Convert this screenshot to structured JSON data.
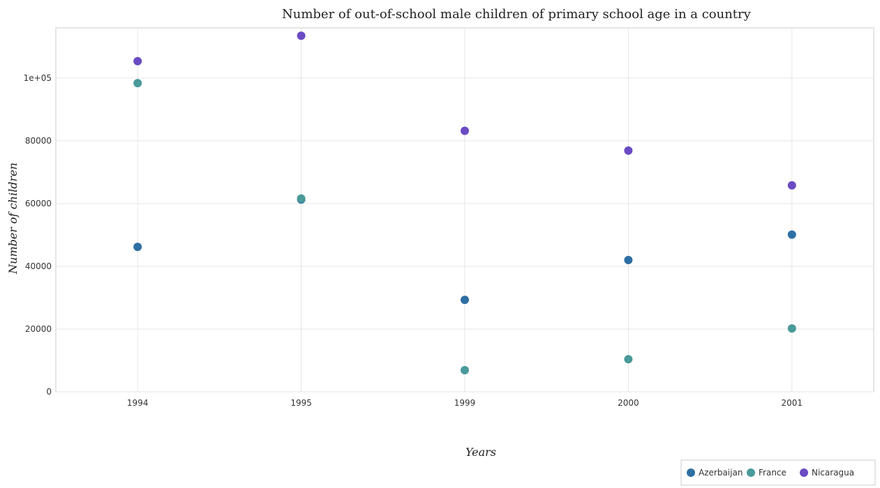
{
  "chart_data": {
    "type": "scatter",
    "title": "Number of out-of-school male children of primary school age in a country",
    "xlabel": "Years",
    "ylabel": "Number of children",
    "categories": [
      "1994",
      "1995",
      "1999",
      "2000",
      "2001"
    ],
    "ylim": [
      0,
      116000
    ],
    "yticks": [
      0,
      20000,
      40000,
      60000,
      80000,
      100000
    ],
    "ytick_labels": [
      "0",
      "20000",
      "40000",
      "60000",
      "80000",
      "1e+05"
    ],
    "grid": true,
    "legend_position": "bottom-right",
    "series": [
      {
        "name": "Azerbaijan",
        "color": "#2e6fa3",
        "values": [
          46200,
          61300,
          29300,
          42000,
          50100
        ]
      },
      {
        "name": "France",
        "color": "#4a9a9a",
        "values": [
          98400,
          61600,
          6900,
          10400,
          20200
        ]
      },
      {
        "name": "Nicaragua",
        "color": "#6a4bc4",
        "values": [
          105400,
          113500,
          83200,
          76900,
          65800
        ]
      }
    ]
  }
}
